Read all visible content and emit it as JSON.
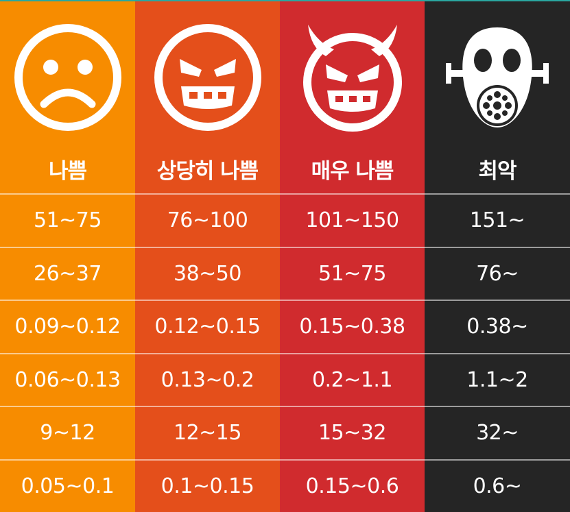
{
  "columns": [
    {
      "label": "나쁨",
      "icon": "sad-face-icon",
      "color": "#f78c00"
    },
    {
      "label": "상당히 나쁨",
      "icon": "angry-face-icon",
      "color": "#e44f1b"
    },
    {
      "label": "매우 나쁨",
      "icon": "devil-face-icon",
      "color": "#d02b2e"
    },
    {
      "label": "최악",
      "icon": "gas-mask-icon",
      "color": "#252525"
    }
  ],
  "rows": [
    [
      "51~75",
      "76~100",
      "101~150",
      "151~"
    ],
    [
      "26~37",
      "38~50",
      "51~75",
      "76~"
    ],
    [
      "0.09~0.12",
      "0.12~0.15",
      "0.15~0.38",
      "0.38~"
    ],
    [
      "0.06~0.13",
      "0.13~0.2",
      "0.2~1.1",
      "1.1~2"
    ],
    [
      "9~12",
      "12~15",
      "15~32",
      "32~"
    ],
    [
      "0.05~0.1",
      "0.1~0.15",
      "0.15~0.6",
      "0.6~"
    ]
  ]
}
